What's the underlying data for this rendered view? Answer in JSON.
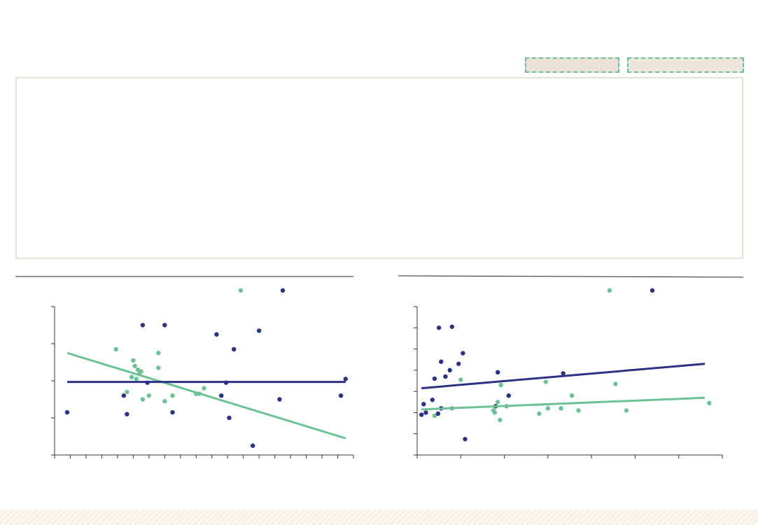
{
  "toolbar": {
    "button_a": "",
    "button_b": ""
  },
  "colors": {
    "green": "#6cc295",
    "navy": "#2b3183",
    "axis": "#333333",
    "rule": "#222222"
  },
  "chart_data": [
    {
      "type": "scatter",
      "title": "",
      "xlabel": "",
      "ylabel": "",
      "xlim": [
        0,
        19
      ],
      "ylim": [
        0,
        4
      ],
      "x_ticks": 19,
      "y_ticks": 4,
      "legend": "top-right",
      "series": [
        {
          "color": "#6cc295",
          "points": [
            [
              3.9,
              2.85
            ],
            [
              5.0,
              2.55
            ],
            [
              5.3,
              2.3
            ],
            [
              5.1,
              2.4
            ],
            [
              5.4,
              2.2
            ],
            [
              5.2,
              2.05
            ],
            [
              5.5,
              2.25
            ],
            [
              5.6,
              1.5
            ],
            [
              6.0,
              1.6
            ],
            [
              6.6,
              2.75
            ],
            [
              6.6,
              2.35
            ],
            [
              7.0,
              1.45
            ],
            [
              7.5,
              1.6
            ],
            [
              9.0,
              1.65
            ],
            [
              9.2,
              1.65
            ],
            [
              9.5,
              1.8
            ],
            [
              4.6,
              1.7
            ],
            [
              4.9,
              2.1
            ]
          ],
          "trendline": [
            [
              0.8,
              2.75
            ],
            [
              18.5,
              0.45
            ]
          ]
        },
        {
          "color": "#2b3183",
          "points": [
            [
              0.8,
              1.15
            ],
            [
              4.4,
              1.6
            ],
            [
              4.6,
              1.1
            ],
            [
              5.6,
              3.5
            ],
            [
              5.9,
              1.95
            ],
            [
              7.0,
              3.5
            ],
            [
              7.5,
              1.15
            ],
            [
              10.3,
              3.25
            ],
            [
              10.6,
              1.6
            ],
            [
              10.9,
              1.95
            ],
            [
              11.1,
              1.0
            ],
            [
              11.4,
              2.85
            ],
            [
              12.6,
              0.25
            ],
            [
              13.0,
              3.35
            ],
            [
              14.3,
              1.5
            ],
            [
              18.2,
              1.6
            ],
            [
              18.5,
              2.05
            ]
          ],
          "trendline": [
            [
              0.8,
              1.97
            ],
            [
              18.5,
              1.97
            ]
          ]
        }
      ]
    },
    {
      "type": "scatter",
      "title": "",
      "xlabel": "",
      "ylabel": "",
      "xlim": [
        0,
        7
      ],
      "ylim": [
        0,
        7
      ],
      "x_ticks": 7,
      "y_ticks": 7,
      "legend": "top-right",
      "series": [
        {
          "color": "#6cc295",
          "points": [
            [
              0.4,
              1.85
            ],
            [
              0.8,
              2.2
            ],
            [
              1.0,
              3.55
            ],
            [
              1.75,
              2.1
            ],
            [
              1.78,
              2.0
            ],
            [
              1.85,
              2.5
            ],
            [
              1.9,
              1.65
            ],
            [
              1.92,
              3.3
            ],
            [
              2.05,
              2.3
            ],
            [
              2.8,
              1.95
            ],
            [
              2.95,
              3.45
            ],
            [
              3.0,
              2.2
            ],
            [
              3.3,
              2.2
            ],
            [
              3.55,
              2.8
            ],
            [
              3.7,
              2.1
            ],
            [
              4.55,
              3.35
            ],
            [
              4.8,
              2.1
            ],
            [
              6.7,
              2.45
            ]
          ],
          "trendline": [
            [
              0.1,
              2.15
            ],
            [
              6.6,
              2.7
            ]
          ]
        },
        {
          "color": "#2b3183",
          "points": [
            [
              0.1,
              1.9
            ],
            [
              0.15,
              2.4
            ],
            [
              0.2,
              2.0
            ],
            [
              0.35,
              2.6
            ],
            [
              0.4,
              3.6
            ],
            [
              0.48,
              1.95
            ],
            [
              0.55,
              2.2
            ],
            [
              0.5,
              6.0
            ],
            [
              0.55,
              4.4
            ],
            [
              0.65,
              3.7
            ],
            [
              0.75,
              4.0
            ],
            [
              0.8,
              6.05
            ],
            [
              0.95,
              4.3
            ],
            [
              1.05,
              4.8
            ],
            [
              1.1,
              0.75
            ],
            [
              1.8,
              2.3
            ],
            [
              1.85,
              3.9
            ],
            [
              2.1,
              2.8
            ],
            [
              3.35,
              3.85
            ]
          ],
          "trendline": [
            [
              0.1,
              3.15
            ],
            [
              6.6,
              4.3
            ]
          ]
        }
      ]
    }
  ]
}
